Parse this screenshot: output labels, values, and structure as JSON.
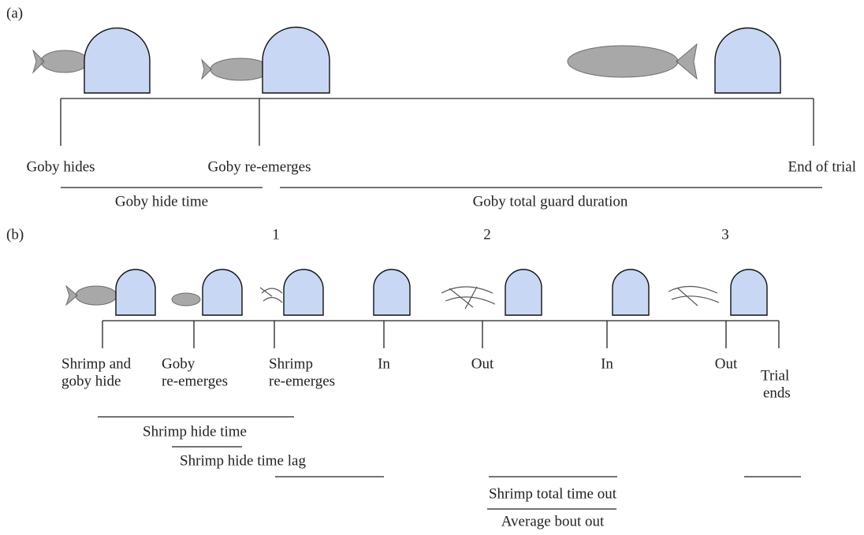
{
  "panel_a": {
    "label": "(a)",
    "events": [
      "Goby hides",
      "Goby re-emerges",
      "End of trial"
    ],
    "spans": [
      "Goby hide time",
      "Goby total guard duration"
    ]
  },
  "panel_b": {
    "label": "(b)",
    "bout_numbers": [
      "1",
      "2",
      "3"
    ],
    "events": [
      {
        "lines": [
          "Shrimp and",
          "goby hide"
        ]
      },
      {
        "lines": [
          "Goby",
          "re-emerges"
        ]
      },
      {
        "lines": [
          "Shrimp",
          "re-emerges"
        ]
      },
      {
        "lines": [
          "In"
        ]
      },
      {
        "lines": [
          "Out"
        ]
      },
      {
        "lines": [
          "In"
        ]
      },
      {
        "lines": [
          "Out"
        ]
      },
      {
        "lines": [
          "Trial",
          "ends"
        ]
      }
    ],
    "spans": [
      "Shrimp hide time",
      "Shrimp hide time lag",
      "Shrimp total time out",
      "Average bout out"
    ]
  }
}
